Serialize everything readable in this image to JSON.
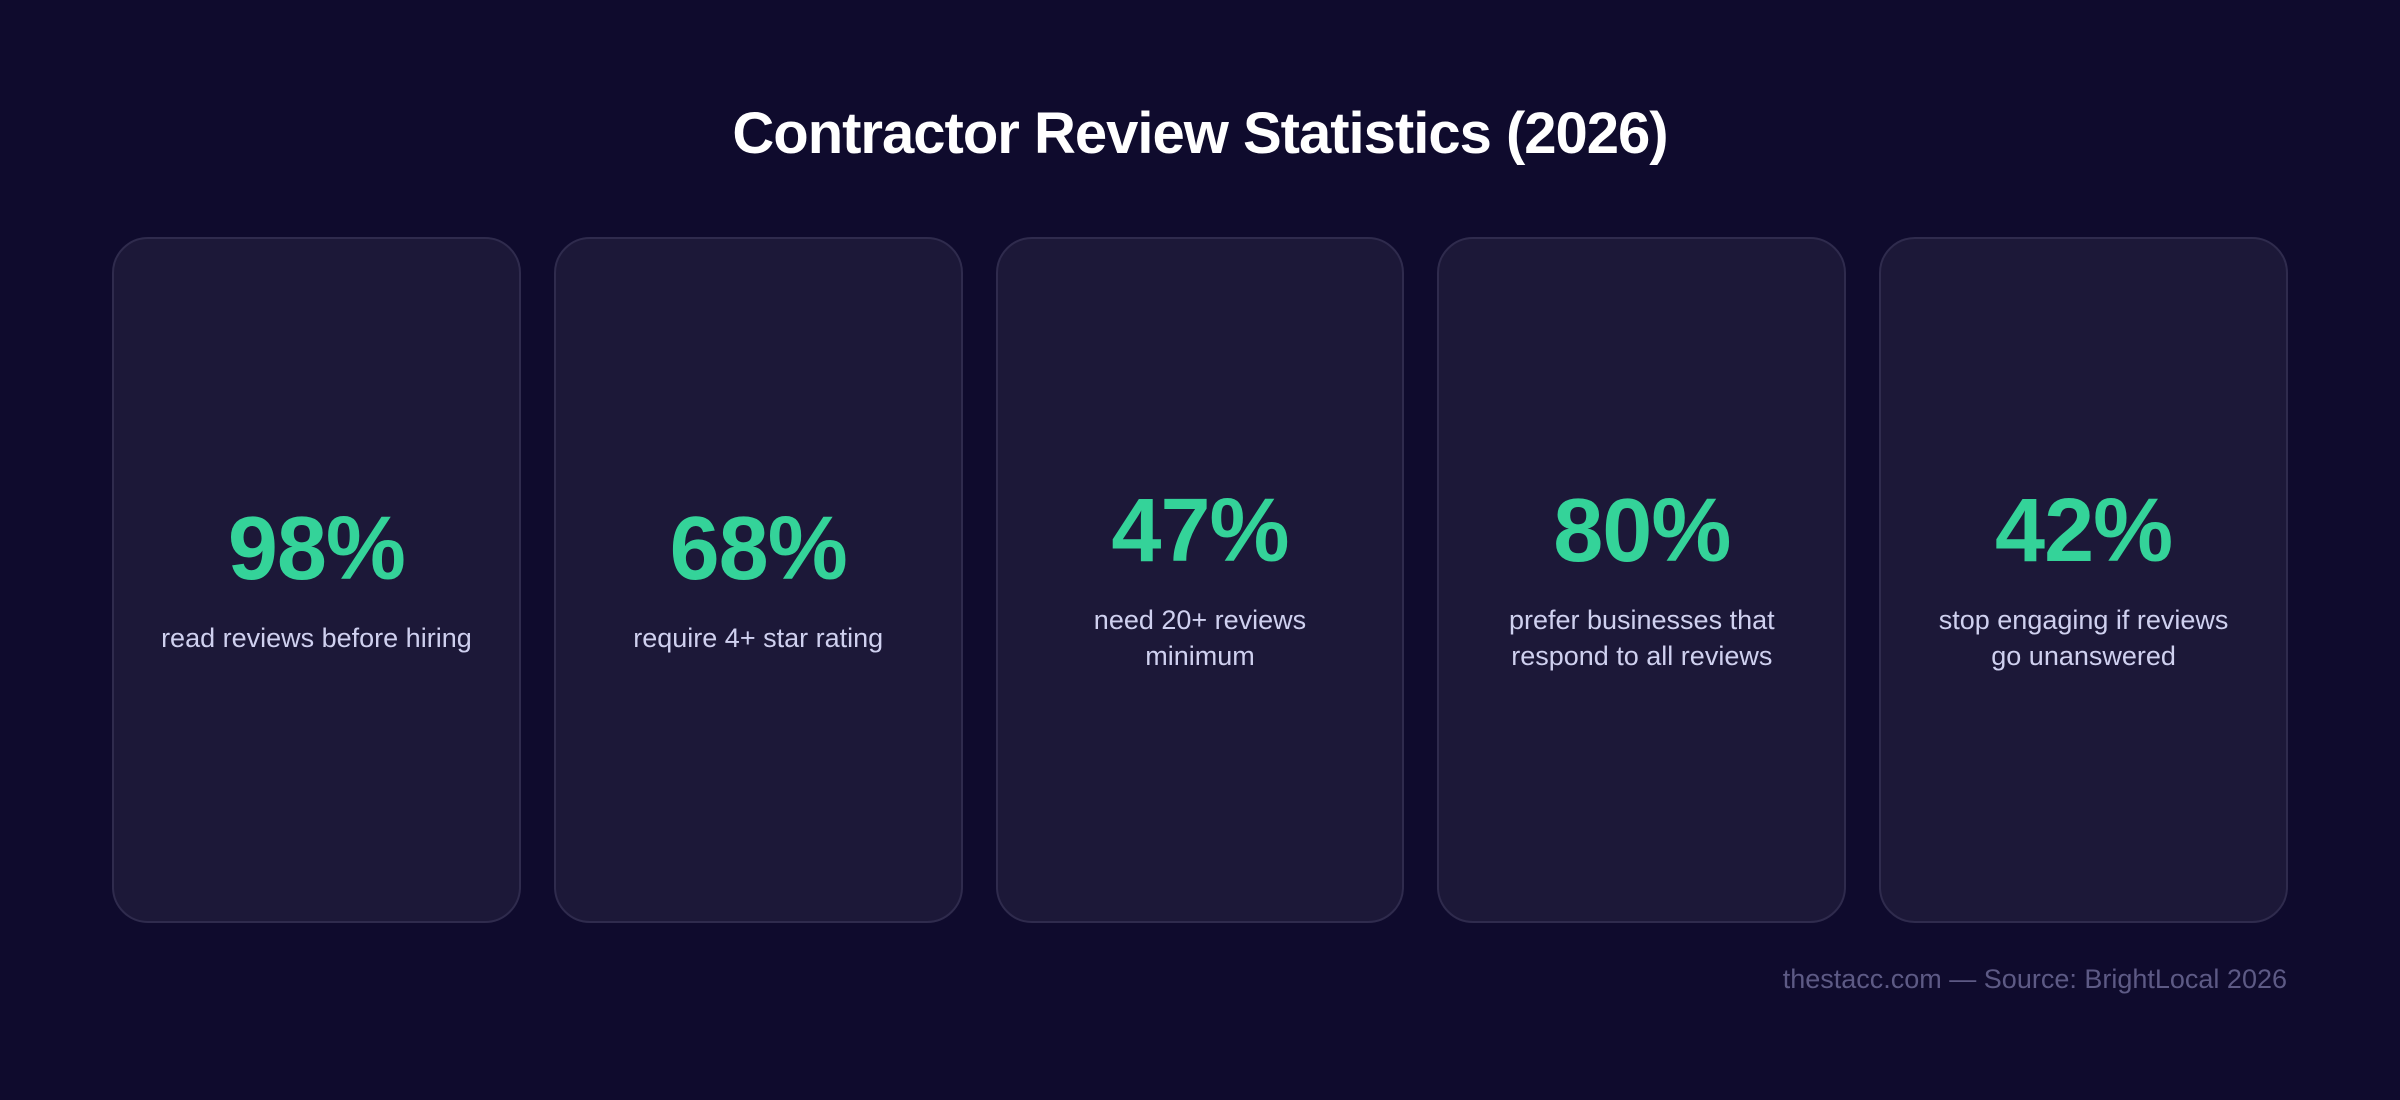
{
  "title": "Contractor Review Statistics (2026)",
  "cards": [
    {
      "stat": "98%",
      "label_lines": [
        "read reviews before hiring"
      ]
    },
    {
      "stat": "68%",
      "label_lines": [
        "require 4+ star rating"
      ]
    },
    {
      "stat": "47%",
      "label_lines": [
        "need 20+ reviews",
        "minimum"
      ]
    },
    {
      "stat": "80%",
      "label_lines": [
        "prefer businesses that",
        "respond to all reviews"
      ]
    },
    {
      "stat": "42%",
      "label_lines": [
        "stop engaging if reviews",
        "go unanswered"
      ]
    }
  ],
  "footer": "thestacc.com — Source: BrightLocal 2026"
}
